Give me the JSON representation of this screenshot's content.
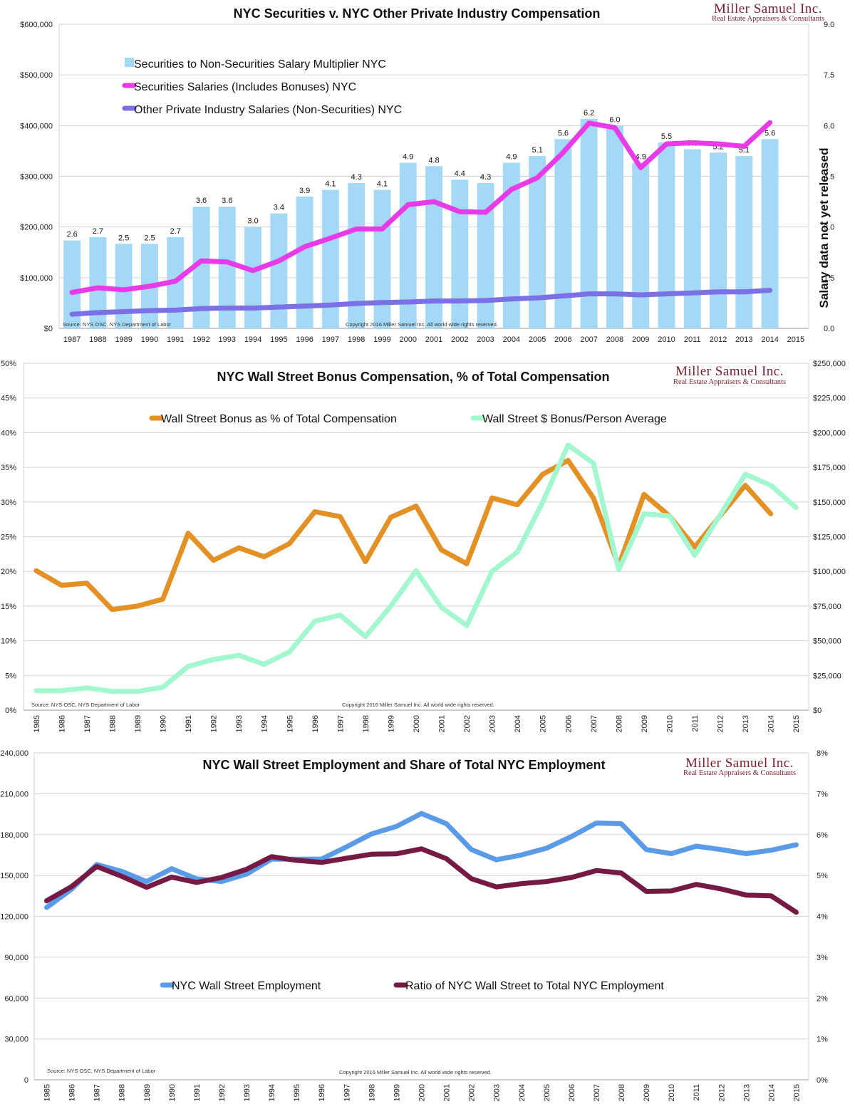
{
  "chart_data": [
    {
      "type": "bar+line",
      "title": "NYC Securities v. NYC Other Private Industry Compensation",
      "brand": {
        "name": "Miller Samuel Inc.",
        "tagline": "Real Estate Appraisers & Consultants"
      },
      "source": "Source: NYS OSC, NYS Department of Labor",
      "copyright": "Copyright 2016 Miller Samuel Inc.  All world wide rights reserved.",
      "note": "Salary data not yet released",
      "categories": [
        "1987",
        "1988",
        "1989",
        "1990",
        "1991",
        "1992",
        "1993",
        "1994",
        "1995",
        "1996",
        "1997",
        "1998",
        "1999",
        "2000",
        "2001",
        "2002",
        "2003",
        "2004",
        "2005",
        "2006",
        "2007",
        "2008",
        "2009",
        "2010",
        "2011",
        "2012",
        "2013",
        "2014",
        "2015"
      ],
      "y_left": {
        "min": 0,
        "max": 600000,
        "step": 100000,
        "labels": [
          "$0",
          "$100,000",
          "$200,000",
          "$300,000",
          "$400,000",
          "$500,000",
          "$600,000"
        ]
      },
      "y_right": {
        "min": 0,
        "max": 9,
        "step": 1.5,
        "labels": [
          "0.0",
          "1.5",
          "3.0",
          "4.5",
          "6.0",
          "7.5",
          "9.0"
        ]
      },
      "series": [
        {
          "name": "Securities to Non-Securities Salary Multiplier NYC",
          "kind": "bar",
          "axis": "right",
          "color": "#a3d8f7",
          "values": [
            2.6,
            2.7,
            2.5,
            2.5,
            2.7,
            3.6,
            3.6,
            3.0,
            3.4,
            3.9,
            4.1,
            4.3,
            4.1,
            4.9,
            4.8,
            4.4,
            4.3,
            4.9,
            5.1,
            5.6,
            6.2,
            6.0,
            4.9,
            5.5,
            5.3,
            5.2,
            5.1,
            5.6,
            null
          ],
          "labels": [
            "2.6",
            "2.7",
            "2.5",
            "2.5",
            "2.7",
            "3.6",
            "3.6",
            "3.0",
            "3.4",
            "3.9",
            "4.1",
            "4.3",
            "4.1",
            "4.9",
            "4.8",
            "4.4",
            "4.3",
            "4.9",
            "5.1",
            "5.6",
            "6.2",
            "6.0",
            "4.9",
            "5.5",
            "5.3",
            "5.2",
            "5.1",
            "5.6",
            ""
          ]
        },
        {
          "name": "Securities Salaries (Includes Bonuses) NYC",
          "kind": "line",
          "axis": "left",
          "color": "#e83ae6",
          "values": [
            71000,
            80000,
            76000,
            83000,
            93000,
            133000,
            131000,
            114000,
            133000,
            161000,
            178000,
            196000,
            196000,
            244000,
            250000,
            230000,
            229000,
            274000,
            297000,
            347000,
            405000,
            396000,
            317000,
            364000,
            366000,
            364000,
            359000,
            406000,
            null
          ]
        },
        {
          "name": "Other Private Industry Salaries (Non-Securities) NYC",
          "kind": "line",
          "axis": "left",
          "color": "#7b70e6",
          "values": [
            28000,
            31000,
            33000,
            35000,
            36000,
            39000,
            40000,
            40000,
            42000,
            44000,
            46000,
            49000,
            51000,
            52000,
            54000,
            54000,
            55000,
            58000,
            60000,
            64000,
            68000,
            68000,
            66000,
            68000,
            70000,
            72000,
            72000,
            75000,
            null
          ]
        }
      ]
    },
    {
      "type": "line",
      "title": "NYC Wall Street Bonus Compensation, % of Total Compensation",
      "brand": {
        "name": "Miller Samuel Inc.",
        "tagline": "Real Estate Appraisers & Consultants"
      },
      "source": "Source: NYS OSC, NYS Department of Labor",
      "copyright": "Copyright 2016 Miller Samuel Inc.  All world wide rights reserved.",
      "categories": [
        "1985",
        "1986",
        "1987",
        "1988",
        "1989",
        "1990",
        "1991",
        "1992",
        "1993",
        "1994",
        "1995",
        "1996",
        "1997",
        "1998",
        "1999",
        "2000",
        "2001",
        "2002",
        "2003",
        "2004",
        "2005",
        "2006",
        "2007",
        "2008",
        "2009",
        "2010",
        "2011",
        "2012",
        "2013",
        "2014",
        "2015"
      ],
      "y_left": {
        "min": 0,
        "max": 50,
        "step": 5,
        "labels": [
          "0%",
          "5%",
          "10%",
          "15%",
          "20%",
          "25%",
          "30%",
          "35%",
          "40%",
          "45%",
          "50%"
        ]
      },
      "y_right": {
        "min": 0,
        "max": 250000,
        "step": 25000,
        "labels": [
          "$0",
          "$25,000",
          "$50,000",
          "$75,000",
          "$100,000",
          "$125,000",
          "$150,000",
          "$175,000",
          "$200,000",
          "$225,000",
          "$250,000"
        ]
      },
      "series": [
        {
          "name": "Wall Street Bonus as % of Total Compensation",
          "axis": "left",
          "color": "#e39024",
          "values": [
            20.1,
            18.0,
            18.3,
            14.5,
            15.0,
            16.0,
            25.5,
            21.6,
            23.4,
            22.1,
            24.0,
            28.6,
            27.9,
            21.4,
            27.8,
            29.4,
            23.1,
            21.1,
            30.6,
            29.6,
            34.0,
            36.0,
            30.6,
            20.8,
            31.1,
            28.0,
            23.5,
            28.0,
            32.4,
            28.3,
            null
          ]
        },
        {
          "name": "Wall Street $ Bonus/Person Average",
          "axis": "right",
          "color": "#a3f7cf",
          "values": [
            14000,
            14000,
            16000,
            13500,
            13500,
            16500,
            31500,
            36500,
            39500,
            33000,
            42000,
            64000,
            68500,
            53000,
            75000,
            100500,
            74000,
            61000,
            100000,
            114000,
            150000,
            191000,
            178000,
            101000,
            141500,
            140000,
            111500,
            140500,
            170000,
            162000,
            146000
          ]
        }
      ]
    },
    {
      "type": "line",
      "title": "NYC Wall Street Employment and Share of Total NYC Employment",
      "brand": {
        "name": "Miller Samuel Inc.",
        "tagline": "Real Estate Appraisers & Consultants"
      },
      "source": "Source: NYS OSC, NYS Department of Labor",
      "copyright": "Copyright 2016 Miller Samuel Inc.  All world wide rights reserved.",
      "categories": [
        "1985",
        "1986",
        "1987",
        "1988",
        "1989",
        "1990",
        "1991",
        "1992",
        "1993",
        "1994",
        "1995",
        "1996",
        "1997",
        "1998",
        "1999",
        "2000",
        "2001",
        "2002",
        "2003",
        "2004",
        "2005",
        "2006",
        "2007",
        "2008",
        "2009",
        "2010",
        "2011",
        "2012",
        "2013",
        "2014",
        "2015"
      ],
      "y_left": {
        "min": 0,
        "max": 240000,
        "step": 30000,
        "labels": [
          "0",
          "30,000",
          "60,000",
          "90,000",
          "120,000",
          "150,000",
          "180,000",
          "210,000",
          "240,000"
        ]
      },
      "y_right": {
        "min": 0,
        "max": 8,
        "step": 1,
        "labels": [
          "0%",
          "1%",
          "2%",
          "3%",
          "4%",
          "5%",
          "6%",
          "7%",
          "8%"
        ]
      },
      "series": [
        {
          "name": "NYC Wall Street Employment",
          "axis": "left",
          "color": "#5a9be8",
          "values": [
            126500,
            140000,
            158000,
            153000,
            145500,
            155000,
            147500,
            145500,
            151000,
            162000,
            162000,
            162000,
            171000,
            180500,
            186000,
            195500,
            188000,
            169000,
            161500,
            165000,
            170000,
            178500,
            188500,
            188000,
            169000,
            166000,
            171500,
            169000,
            166000,
            168500,
            172500
          ]
        },
        {
          "name": "Ratio of NYC Wall Street to Total NYC Employment",
          "axis": "right",
          "color": "#741a44",
          "values": [
            4.38,
            4.73,
            5.22,
            4.98,
            4.71,
            4.96,
            4.83,
            4.95,
            5.15,
            5.46,
            5.37,
            5.32,
            5.42,
            5.52,
            5.53,
            5.65,
            5.41,
            4.92,
            4.72,
            4.8,
            4.85,
            4.95,
            5.12,
            5.06,
            4.61,
            4.62,
            4.78,
            4.67,
            4.52,
            4.5,
            4.1
          ]
        }
      ]
    }
  ]
}
